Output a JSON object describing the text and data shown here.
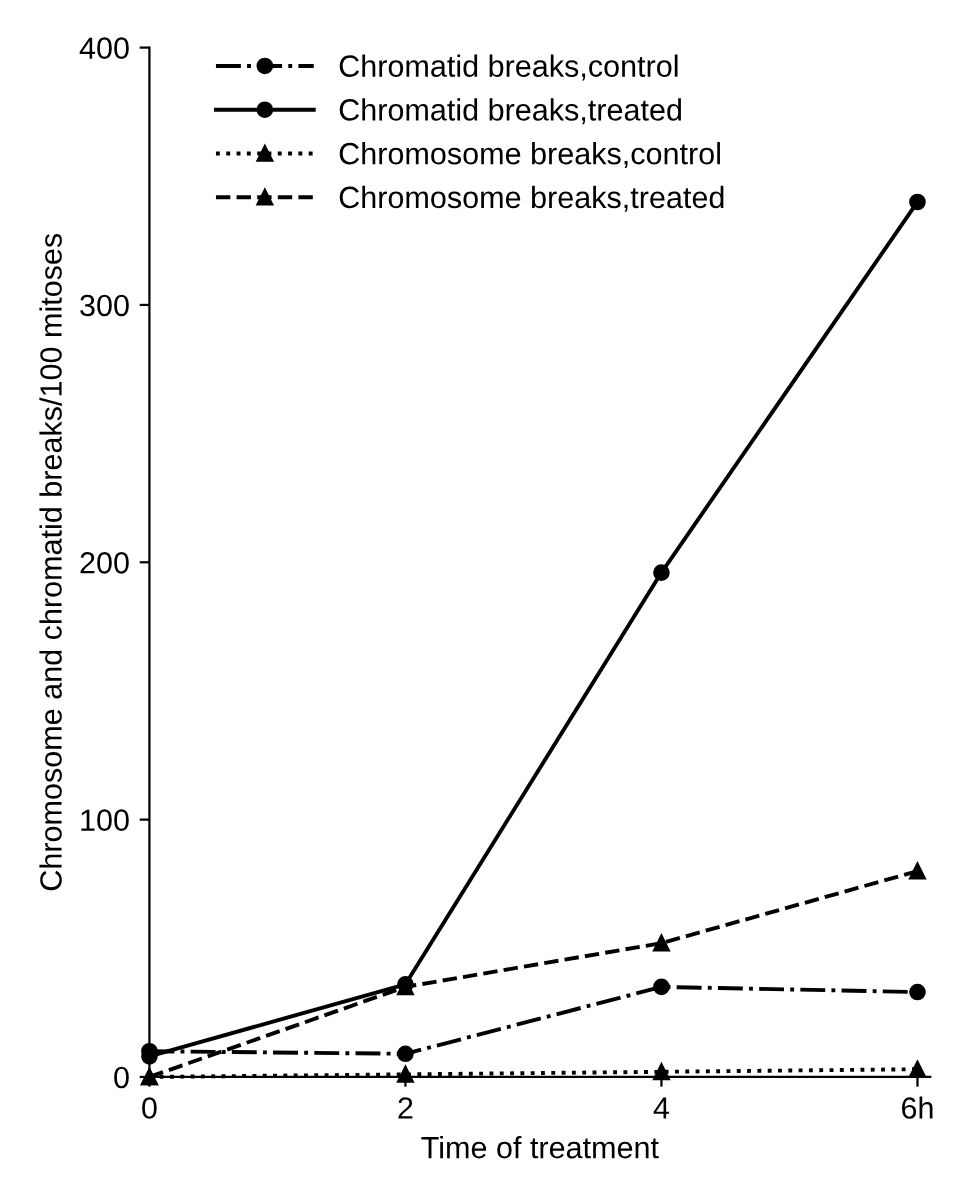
{
  "chart_data": {
    "type": "line",
    "xlabel": "Time of treatment",
    "ylabel": "Chromosome and chromatid breaks/100 mitoses",
    "x": [
      0,
      2,
      4,
      6
    ],
    "series": [
      {
        "name": "Chromatid breaks,control",
        "color": "#000000",
        "values": [
          10,
          9,
          35,
          33
        ],
        "marker": "circle",
        "line_style": "dashdot"
      },
      {
        "name": "Chromatid breaks,treated",
        "color": "#000000",
        "values": [
          8,
          36,
          196,
          340
        ],
        "marker": "circle",
        "line_style": "solid"
      },
      {
        "name": "Chromosome breaks,control",
        "color": "#000000",
        "values": [
          0,
          1,
          2,
          3
        ],
        "marker": "triangle",
        "line_style": "dotted"
      },
      {
        "name": "Chromosome breaks,treated",
        "color": "#000000",
        "values": [
          0,
          35,
          52,
          80
        ],
        "marker": "triangle",
        "line_style": "dashed"
      }
    ],
    "xlim": [
      0,
      6.1
    ],
    "ylim": [
      0,
      400
    ],
    "xticks": [
      0,
      2,
      4,
      {
        "value": 6,
        "label": "6h"
      }
    ],
    "yticks": [
      0,
      100,
      200,
      300,
      400
    ],
    "grid": false,
    "legend": "top left"
  }
}
